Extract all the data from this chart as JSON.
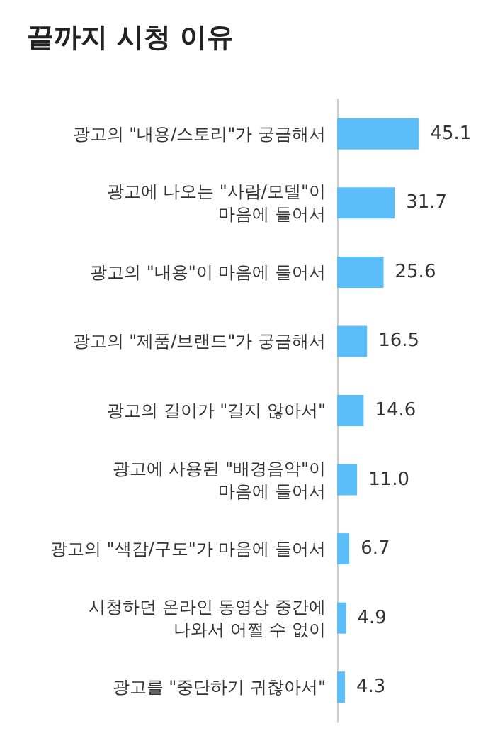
{
  "chart_data": {
    "type": "bar",
    "orientation": "horizontal",
    "title": "끝까지 시청 이유",
    "categories": [
      "광고의 \"내용/스토리\"가 궁금해서",
      "광고에 나오는 \"사람/모델\"이\n마음에 들어서",
      "광고의 \"내용\"이 마음에 들어서",
      "광고의 \"제품/브랜드\"가 궁금해서",
      "광고의 길이가 \"길지 않아서\"",
      "광고에 사용된 \"배경음악\"이\n마음에 들어서",
      "광고의 \"색감/구도\"가 마음에 들어서",
      "시청하던 온라인 동영상 중간에\n나와서 어쩔 수 없이",
      "광고를 \"중단하기 귀찮아서\""
    ],
    "values": [
      45.1,
      31.7,
      25.6,
      16.5,
      14.6,
      11.0,
      6.7,
      4.9,
      4.3
    ],
    "value_labels": [
      "45.1",
      "31.7",
      "25.6",
      "16.5",
      "14.6",
      "11.0",
      "6.7",
      "4.9",
      "4.3"
    ],
    "color": "#5bbef9"
  }
}
